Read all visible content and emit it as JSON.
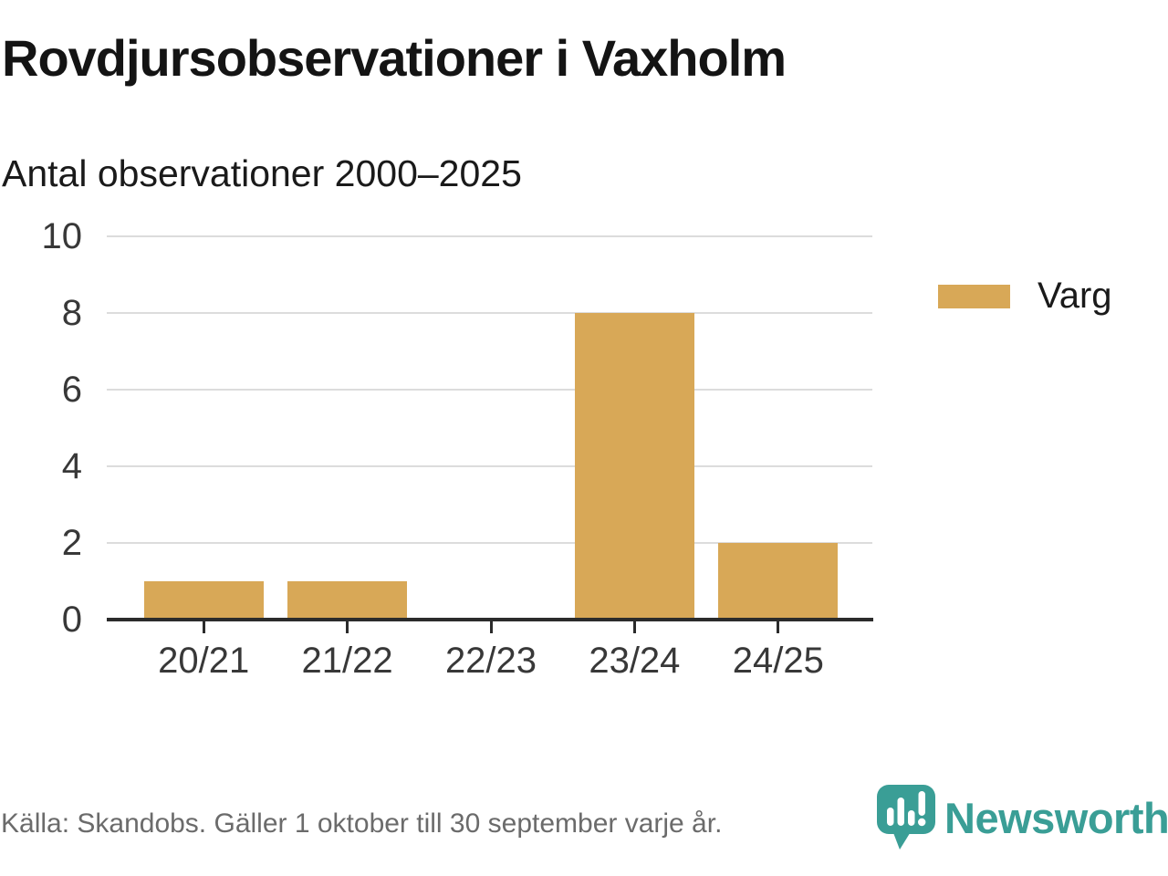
{
  "header": {
    "title": "Rovdjursobservationer i Vaxholm",
    "subtitle": "Antal observationer 2000–2025"
  },
  "chart_data": {
    "type": "bar",
    "title": "Rovdjursobservationer i Vaxholm",
    "subtitle": "Antal observationer 2000–2025",
    "categories": [
      "20/21",
      "21/22",
      "22/23",
      "23/24",
      "24/25"
    ],
    "series": [
      {
        "name": "Varg",
        "values": [
          1,
          1,
          0,
          8,
          2
        ],
        "color": "#D8A857"
      }
    ],
    "xlabel": "",
    "ylabel": "",
    "ylim": [
      0,
      10
    ],
    "yticks": [
      0,
      2,
      4,
      6,
      8,
      10
    ],
    "grid": true,
    "legend_position": "right"
  },
  "legend": {
    "items": [
      {
        "label": "Varg",
        "color": "#D8A857"
      }
    ]
  },
  "footer": {
    "source": "Källa: Skandobs. Gäller 1 oktober till 30 september varje år.",
    "brand": "Newsworthy"
  },
  "icons": {
    "brand_icon": "newsworthy-speech-bubble-bar-chart-icon"
  },
  "colors": {
    "bar": "#D8A857",
    "teal": "#3A9E96",
    "grid": "#DCDCDC",
    "axis": "#2B2B2B",
    "text": "#1A1A1A",
    "tick_text": "#383838",
    "muted": "#6B6B6B"
  }
}
